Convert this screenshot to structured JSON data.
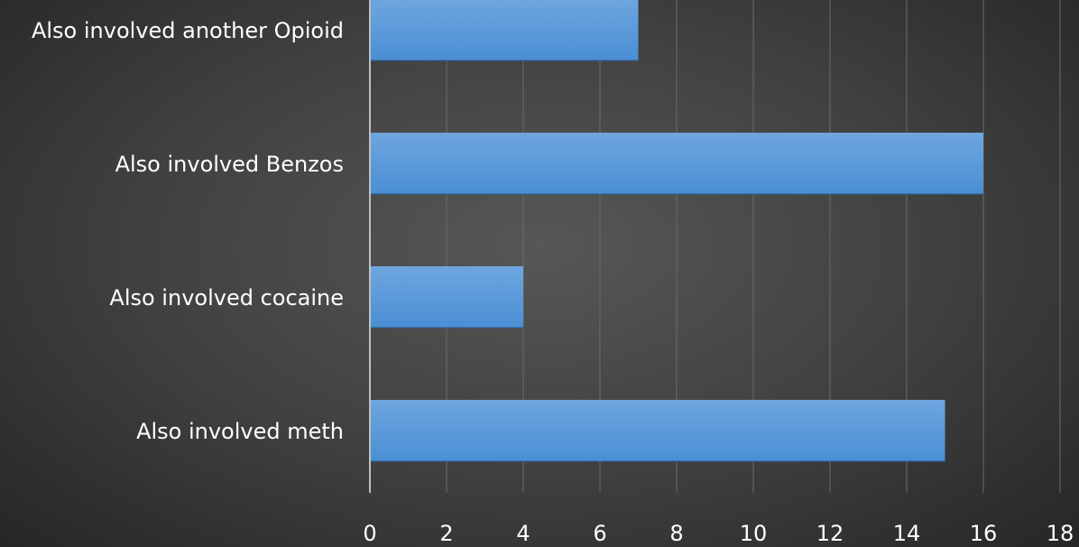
{
  "chart_data": {
    "type": "bar",
    "orientation": "horizontal",
    "categories": [
      "Also involved another Opioid",
      "Also involved Benzos",
      "Also involved cocaine",
      "Also involved meth"
    ],
    "values": [
      7,
      16,
      4,
      15
    ],
    "xlim": [
      0,
      18
    ],
    "xticks": [
      "0",
      "2",
      "4",
      "6",
      "8",
      "10",
      "12",
      "14",
      "16",
      "18"
    ],
    "title": "",
    "xlabel": "",
    "ylabel": "",
    "grid": "vertical",
    "legend": "none",
    "colors": {
      "bar_top": "#6ea6df",
      "bar_bottom": "#4a8fd4",
      "grid": "#6a6a6a",
      "axis": "#bfbfbf",
      "text": "#ffffff"
    }
  }
}
